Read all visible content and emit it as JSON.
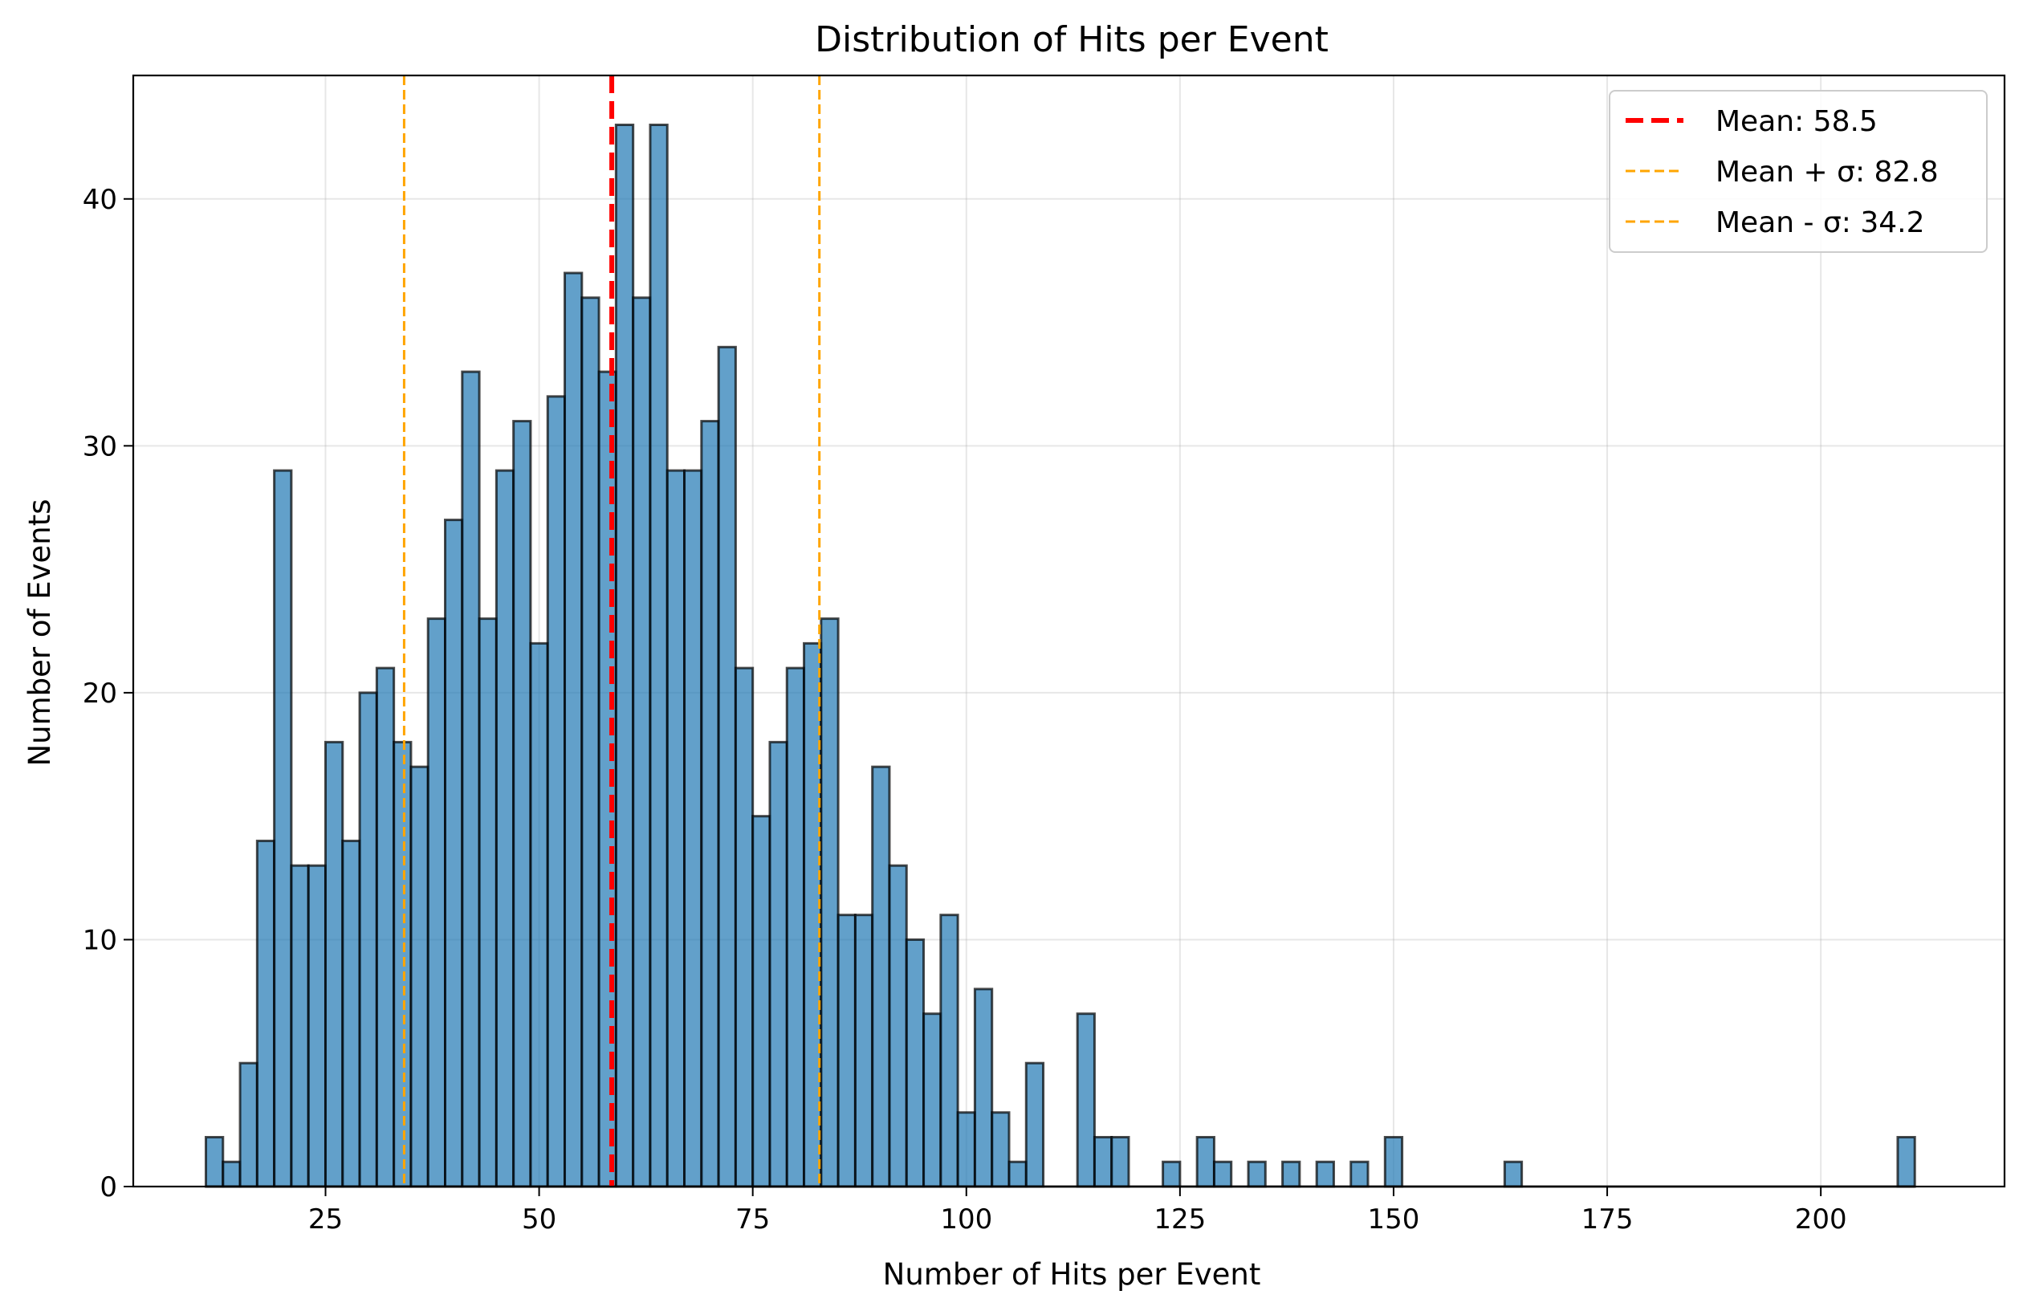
{
  "chart_data": {
    "type": "bar",
    "title": "Distribution of Hits per Event",
    "xlabel": "Number of Hits per Event",
    "ylabel": "Number of Events",
    "xlim": [
      2.5,
      221.5
    ],
    "ylim": [
      0,
      45
    ],
    "xticks": [
      25,
      50,
      75,
      100,
      125,
      150,
      175,
      200
    ],
    "yticks": [
      0,
      10,
      20,
      30,
      40
    ],
    "grid": true,
    "legend_position": "top-right",
    "bin_width": 2,
    "bin_start": 11,
    "bar_color": "#1f77b4",
    "bar_edge_color": "#000000",
    "values": [
      2,
      1,
      5,
      14,
      29,
      13,
      13,
      18,
      14,
      20,
      21,
      18,
      17,
      23,
      27,
      33,
      23,
      29,
      31,
      22,
      32,
      37,
      36,
      33,
      43,
      36,
      43,
      29,
      29,
      31,
      34,
      21,
      15,
      18,
      21,
      22,
      23,
      11,
      11,
      17,
      13,
      10,
      7,
      11,
      3,
      8,
      3,
      1,
      5,
      0,
      0,
      7,
      2,
      2,
      0,
      0,
      1,
      0,
      2,
      1,
      0,
      1,
      0,
      1,
      0,
      1,
      0,
      1,
      0,
      2,
      0,
      0,
      0,
      0,
      0,
      0,
      1,
      0,
      0,
      0,
      0,
      0,
      0,
      0,
      0,
      0,
      0,
      0,
      0,
      0,
      0,
      0,
      0,
      0,
      0,
      0,
      0,
      0,
      0,
      2
    ],
    "reference_lines": [
      {
        "name": "Mean: 58.5",
        "x": 58.5,
        "color": "#ff0000",
        "style": "dashed",
        "role": "mean"
      },
      {
        "name": "Mean + σ: 82.8",
        "x": 82.8,
        "color": "#ffa500",
        "style": "dashed",
        "role": "plus-sigma"
      },
      {
        "name": "Mean - σ: 34.2",
        "x": 34.2,
        "color": "#ffa500",
        "style": "dashed",
        "role": "minus-sigma"
      }
    ]
  }
}
